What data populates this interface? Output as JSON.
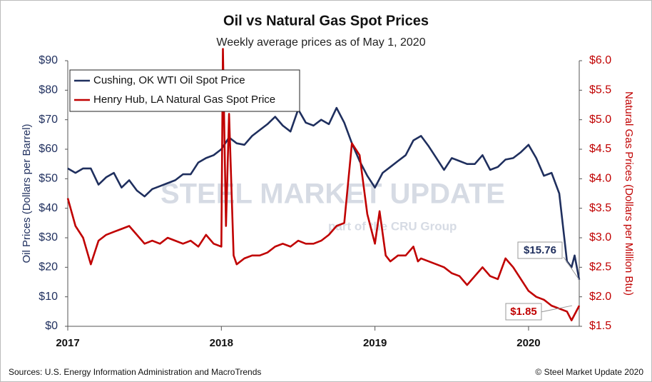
{
  "chart_data": {
    "type": "line",
    "title": "Oil vs Natural Gas Spot Prices",
    "subtitle": "Weekly average prices as of May 1, 2020",
    "y_label": "Oil Prices (Dollars per Barrel)",
    "y2_label": "Natural Gas Prices (Dollars per Million Btu)",
    "xlim": [
      2017,
      2020.33
    ],
    "xticks": [
      2017,
      2018,
      2019,
      2020
    ],
    "ylim": [
      0,
      90
    ],
    "yticks": [
      {
        "value": 0,
        "label": "$0"
      },
      {
        "value": 10,
        "label": "$10"
      },
      {
        "value": 20,
        "label": "$20"
      },
      {
        "value": 30,
        "label": "$30"
      },
      {
        "value": 40,
        "label": "$40"
      },
      {
        "value": 50,
        "label": "$50"
      },
      {
        "value": 60,
        "label": "$60"
      },
      {
        "value": 70,
        "label": "$70"
      },
      {
        "value": 80,
        "label": "$80"
      },
      {
        "value": 90,
        "label": "$90"
      }
    ],
    "y2lim": [
      1.5,
      6.0
    ],
    "y2ticks": [
      {
        "value": 1.5,
        "label": "$1.5"
      },
      {
        "value": 2.0,
        "label": "$2.0"
      },
      {
        "value": 2.5,
        "label": "$2.5"
      },
      {
        "value": 3.0,
        "label": "$3.0"
      },
      {
        "value": 3.5,
        "label": "$3.5"
      },
      {
        "value": 4.0,
        "label": "$4.0"
      },
      {
        "value": 4.5,
        "label": "$4.5"
      },
      {
        "value": 5.0,
        "label": "$5.0"
      },
      {
        "value": 5.5,
        "label": "$5.5"
      },
      {
        "value": 6.0,
        "label": "$6.0"
      }
    ],
    "grid": false,
    "legend": "top-left",
    "series": [
      {
        "name": "Cushing, OK WTI Oil Spot Price",
        "color": "#1f2f5e",
        "axis": "y",
        "x": [
          2017.0,
          2017.05,
          2017.1,
          2017.15,
          2017.2,
          2017.25,
          2017.3,
          2017.35,
          2017.4,
          2017.45,
          2017.5,
          2017.55,
          2017.6,
          2017.65,
          2017.7,
          2017.75,
          2017.8,
          2017.85,
          2017.9,
          2017.95,
          2018.0,
          2018.05,
          2018.1,
          2018.15,
          2018.2,
          2018.25,
          2018.3,
          2018.35,
          2018.4,
          2018.45,
          2018.5,
          2018.55,
          2018.6,
          2018.65,
          2018.7,
          2018.75,
          2018.8,
          2018.85,
          2018.9,
          2018.95,
          2019.0,
          2019.05,
          2019.1,
          2019.15,
          2019.2,
          2019.25,
          2019.3,
          2019.35,
          2019.4,
          2019.45,
          2019.5,
          2019.55,
          2019.6,
          2019.65,
          2019.7,
          2019.75,
          2019.8,
          2019.85,
          2019.9,
          2019.95,
          2020.0,
          2020.05,
          2020.1,
          2020.15,
          2020.2,
          2020.25,
          2020.28,
          2020.3,
          2020.33
        ],
        "values": [
          53.5,
          52,
          53.5,
          53.5,
          48,
          50.5,
          52,
          47,
          49.5,
          46,
          44,
          46.5,
          47.5,
          48.5,
          49.5,
          51.5,
          51.5,
          55.5,
          57,
          58,
          60,
          64,
          62,
          61.5,
          64.5,
          66.5,
          68.5,
          71,
          68,
          66,
          73.5,
          69,
          68,
          70,
          68.5,
          74,
          69,
          62,
          56,
          51,
          47,
          52,
          54,
          56,
          58,
          63,
          64.5,
          61,
          57,
          53,
          57,
          56,
          55,
          55,
          58,
          53,
          54,
          56.5,
          57,
          59,
          61.5,
          57,
          51,
          52,
          45,
          22,
          20,
          24,
          15.76
        ]
      },
      {
        "name": "Henry Hub, LA Natural Gas Spot Price",
        "color": "#c00000",
        "axis": "y2",
        "x": [
          2017.0,
          2017.05,
          2017.1,
          2017.15,
          2017.2,
          2017.25,
          2017.3,
          2017.35,
          2017.4,
          2017.45,
          2017.5,
          2017.55,
          2017.6,
          2017.65,
          2017.7,
          2017.75,
          2017.8,
          2017.85,
          2017.9,
          2017.95,
          2018.0,
          2018.01,
          2018.03,
          2018.05,
          2018.08,
          2018.1,
          2018.15,
          2018.2,
          2018.25,
          2018.3,
          2018.35,
          2018.4,
          2018.45,
          2018.5,
          2018.55,
          2018.6,
          2018.65,
          2018.7,
          2018.75,
          2018.8,
          2018.85,
          2018.9,
          2018.95,
          2019.0,
          2019.03,
          2019.07,
          2019.1,
          2019.15,
          2019.2,
          2019.25,
          2019.28,
          2019.3,
          2019.35,
          2019.4,
          2019.45,
          2019.5,
          2019.55,
          2019.6,
          2019.65,
          2019.7,
          2019.75,
          2019.8,
          2019.85,
          2019.9,
          2019.95,
          2020.0,
          2020.05,
          2020.1,
          2020.15,
          2020.2,
          2020.25,
          2020.28,
          2020.3,
          2020.33
        ],
        "values": [
          3.67,
          3.2,
          3.0,
          2.55,
          2.95,
          3.05,
          3.1,
          3.15,
          3.2,
          3.05,
          2.9,
          2.95,
          2.9,
          3.0,
          2.95,
          2.9,
          2.95,
          2.85,
          3.05,
          2.9,
          2.85,
          6.2,
          3.2,
          5.1,
          2.7,
          2.55,
          2.65,
          2.7,
          2.7,
          2.75,
          2.85,
          2.9,
          2.85,
          2.95,
          2.9,
          2.9,
          2.95,
          3.05,
          3.2,
          3.25,
          4.6,
          4.4,
          3.4,
          2.9,
          3.45,
          2.7,
          2.6,
          2.7,
          2.7,
          2.85,
          2.6,
          2.65,
          2.6,
          2.55,
          2.5,
          2.4,
          2.35,
          2.2,
          2.35,
          2.5,
          2.35,
          2.3,
          2.65,
          2.5,
          2.3,
          2.1,
          2.0,
          1.95,
          1.85,
          1.8,
          1.75,
          1.6,
          1.7,
          1.85
        ]
      }
    ],
    "annotations": [
      {
        "label": "$15.76"
      },
      {
        "label": "$1.85"
      }
    ],
    "watermark": {
      "brand": "STEEL MARKET UPDATE",
      "tagline": "part of the CRU Group"
    },
    "source": "Sources: U.S. Energy Information Administration and MacroTrends",
    "copyright": "© Steel Market Update 2020"
  }
}
